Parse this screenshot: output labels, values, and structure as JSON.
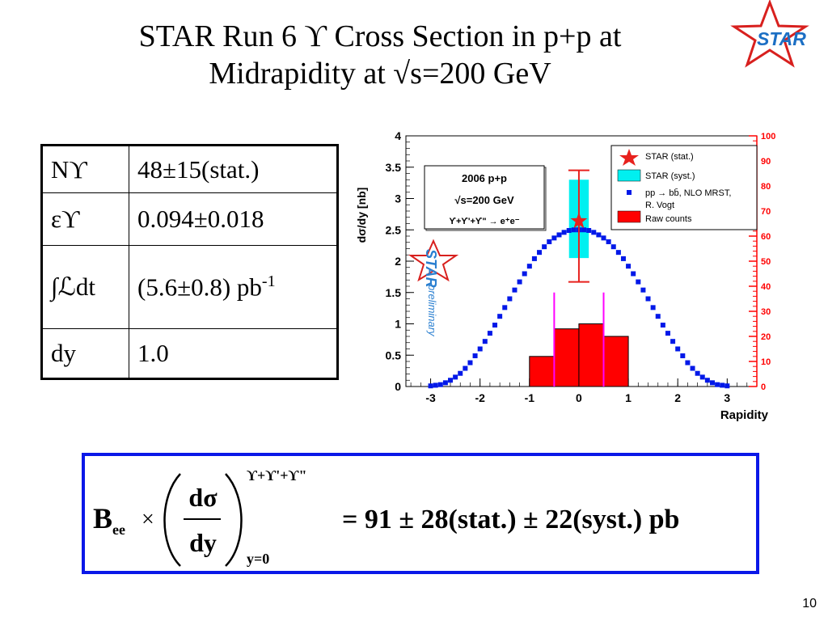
{
  "slide": {
    "title_line1": "STAR Run 6 ϒ Cross Section in p+p at",
    "title_line2": "Midrapidity at √s=200 GeV",
    "logo_text": "STAR",
    "page_number": "10"
  },
  "table": {
    "rows": [
      {
        "key": "Nϒ",
        "value": "48±15(stat.)"
      },
      {
        "key": "εϒ",
        "value": "0.094±0.018"
      },
      {
        "key": "∫ℒdt",
        "value_main": "(5.6±0.8) pb",
        "value_sup": "-1"
      },
      {
        "key": "dy",
        "value": "1.0"
      }
    ]
  },
  "formula": {
    "B": "B",
    "B_sub": "ee",
    "times": "×",
    "numerator": "dσ",
    "denominator": "dy",
    "upper": "ϒ+ϒ'+ϒ\"",
    "lower": "y=0",
    "rhs": "= 91 ± 28(stat.) ± 22(syst.) pb"
  },
  "chart_data": {
    "type": "bar",
    "xlabel": "Rapidity",
    "ylabel": "dσ/dy [nb]",
    "xlim": [
      -3.5,
      3.6
    ],
    "ylim": [
      0,
      4
    ],
    "x_ticks": [
      "-3",
      "-2",
      "-1",
      "0",
      "1",
      "2",
      "3"
    ],
    "y_ticks": [
      "0",
      "0.5",
      "1",
      "1.5",
      "2",
      "2.5",
      "3",
      "3.5",
      "4"
    ],
    "right_axis": {
      "ylim": [
        0,
        100
      ],
      "ticks": [
        "0",
        "10",
        "20",
        "30",
        "40",
        "50",
        "60",
        "70",
        "80",
        "90",
        "100"
      ],
      "color": "#ff0000"
    },
    "info_box": [
      "2006 p+p",
      "√s=200 GeV",
      "ϒ+ϒ'+ϒ\" → e⁺e⁻"
    ],
    "legend": [
      "STAR (stat.)",
      "STAR (syst.)",
      "pp → bb̄, NLO MRST,",
      "R. Vogt",
      "Raw counts"
    ],
    "watermark": [
      "STAR",
      "preliminary"
    ],
    "star_point": {
      "x": 0,
      "y": 2.64,
      "stat_err": [
        1.67,
        3.45
      ],
      "syst_err": [
        2.05,
        3.3
      ],
      "syst_half_width": 0.2
    },
    "window_lines_x": [
      -0.5,
      0.5
    ],
    "raw_counts": {
      "bin_edges": [
        -1,
        -0.5,
        0,
        0.5,
        1
      ],
      "values": [
        12,
        23,
        25,
        20
      ]
    },
    "nlo_curve": {
      "name": "pp → bb̄, NLO MRST, R. Vogt",
      "x": [
        -3.0,
        -2.9,
        -2.8,
        -2.7,
        -2.6,
        -2.5,
        -2.4,
        -2.3,
        -2.2,
        -2.1,
        -2.0,
        -1.9,
        -1.8,
        -1.7,
        -1.6,
        -1.5,
        -1.4,
        -1.3,
        -1.2,
        -1.1,
        -1.0,
        -0.9,
        -0.8,
        -0.7,
        -0.6,
        -0.5,
        -0.4,
        -0.3,
        -0.2,
        -0.1,
        0.0,
        0.1,
        0.2,
        0.3,
        0.4,
        0.5,
        0.6,
        0.7,
        0.8,
        0.9,
        1.0,
        1.1,
        1.2,
        1.3,
        1.4,
        1.5,
        1.6,
        1.7,
        1.8,
        1.9,
        2.0,
        2.1,
        2.2,
        2.3,
        2.4,
        2.5,
        2.6,
        2.7,
        2.8,
        2.9,
        3.0
      ],
      "y": [
        0.01,
        0.02,
        0.03,
        0.06,
        0.1,
        0.15,
        0.21,
        0.29,
        0.38,
        0.49,
        0.6,
        0.72,
        0.85,
        0.98,
        1.12,
        1.26,
        1.4,
        1.54,
        1.67,
        1.8,
        1.92,
        2.04,
        2.14,
        2.23,
        2.31,
        2.37,
        2.42,
        2.46,
        2.49,
        2.5,
        2.5,
        2.5,
        2.49,
        2.46,
        2.42,
        2.37,
        2.31,
        2.23,
        2.14,
        2.04,
        1.92,
        1.8,
        1.67,
        1.54,
        1.4,
        1.26,
        1.12,
        0.98,
        0.85,
        0.72,
        0.6,
        0.49,
        0.38,
        0.29,
        0.21,
        0.15,
        0.1,
        0.06,
        0.03,
        0.02,
        0.01
      ]
    }
  }
}
